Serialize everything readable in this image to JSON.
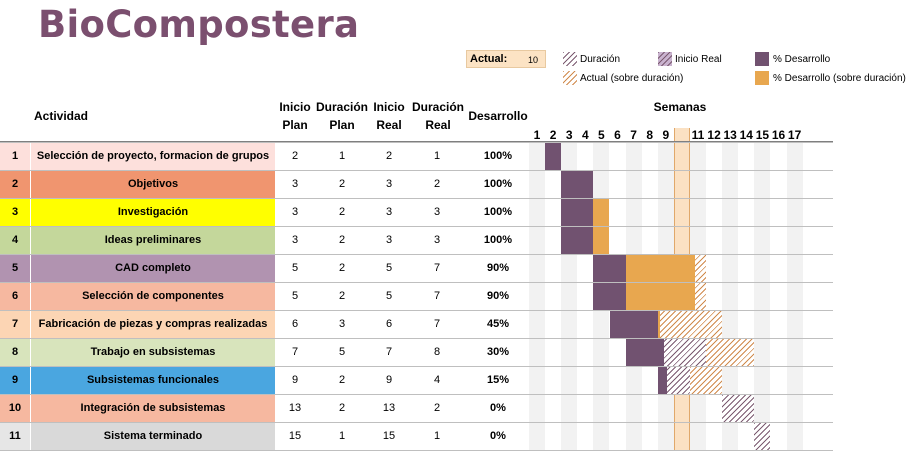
{
  "title": "BioCompostera",
  "actual": {
    "label": "Actual:",
    "value": "10",
    "week": 10
  },
  "legend": {
    "duracion": "Duración",
    "inicio_real": "Inicio Real",
    "desarrollo": "% Desarrollo",
    "actual_sobre": "Actual (sobre duración)",
    "desarrollo_sobre": "% Desarrollo (sobre duración)"
  },
  "headers": {
    "actividad": "Actividad",
    "inicio_plan": [
      "Inicio",
      "Plan"
    ],
    "duracion_plan": [
      "Duración",
      "Plan"
    ],
    "inicio_real": [
      "Inicio",
      "Real"
    ],
    "duracion_real": [
      "Duración",
      "Real"
    ],
    "desarrollo": "Desarrollo",
    "semanas": "Semanas"
  },
  "colors": {
    "title": "#7b4f6f",
    "progress": "#715270",
    "over": "#e8a74f",
    "current_week": "#fbe1c3"
  },
  "weeks": [
    "1",
    "2",
    "3",
    "4",
    "5",
    "6",
    "7",
    "8",
    "9",
    "10",
    "11",
    "12",
    "13",
    "14",
    "15",
    "16",
    "17"
  ],
  "activities": [
    {
      "idx": "1",
      "name": "Selección de proyecto, formacion de grupos",
      "color": "#fde0dc",
      "idxcolor": "#fde0dc",
      "ip": "2",
      "dp": "1",
      "ir": "2",
      "dr": "1",
      "pct": "100%",
      "p": 1.0
    },
    {
      "idx": "2",
      "name": "Objetivos",
      "color": "#f0956f",
      "idxcolor": "#f0956f",
      "ip": "3",
      "dp": "2",
      "ir": "3",
      "dr": "2",
      "pct": "100%",
      "p": 1.0
    },
    {
      "idx": "3",
      "name": "Investigación",
      "color": "#ffff00",
      "idxcolor": "#ffff00",
      "ip": "3",
      "dp": "2",
      "ir": "3",
      "dr": "3",
      "pct": "100%",
      "p": 1.0
    },
    {
      "idx": "4",
      "name": "Ideas preliminares",
      "color": "#c4d79b",
      "idxcolor": "#c4d79b",
      "ip": "3",
      "dp": "2",
      "ir": "3",
      "dr": "3",
      "pct": "100%",
      "p": 1.0
    },
    {
      "idx": "5",
      "name": "CAD completo",
      "color": "#b193b0",
      "idxcolor": "#b193b0",
      "ip": "5",
      "dp": "2",
      "ir": "5",
      "dr": "7",
      "pct": "90%",
      "p": 0.9
    },
    {
      "idx": "6",
      "name": "Selección de componentes",
      "color": "#f6b8a0",
      "idxcolor": "#f6b8a0",
      "ip": "5",
      "dp": "2",
      "ir": "5",
      "dr": "7",
      "pct": "90%",
      "p": 0.9
    },
    {
      "idx": "7",
      "name": "Fabricación de piezas y compras realizadas",
      "color": "#fcd5b4",
      "idxcolor": "#fcd5b4",
      "ip": "6",
      "dp": "3",
      "ir": "6",
      "dr": "7",
      "pct": "45%",
      "p": 0.45
    },
    {
      "idx": "8",
      "name": "Trabajo en subsistemas",
      "color": "#d8e4bc",
      "idxcolor": "#d8e4bc",
      "ip": "7",
      "dp": "5",
      "ir": "7",
      "dr": "8",
      "pct": "30%",
      "p": 0.3
    },
    {
      "idx": "9",
      "name": "Subsistemas funcionales",
      "color": "#4aa6e0",
      "idxcolor": "#4aa6e0",
      "ip": "9",
      "dp": "2",
      "ir": "9",
      "dr": "4",
      "pct": "15%",
      "p": 0.15
    },
    {
      "idx": "10",
      "name": "Integración de subsistemas",
      "color": "#f6b8a0",
      "idxcolor": "#f6b8a0",
      "ip": "13",
      "dp": "2",
      "ir": "13",
      "dr": "2",
      "pct": "0%",
      "p": 0
    },
    {
      "idx": "11",
      "name": "Sistema terminado",
      "color": "#d9d9d9",
      "idxcolor": "#e6e6e6",
      "ip": "15",
      "dp": "1",
      "ir": "15",
      "dr": "1",
      "pct": "0%",
      "p": 0
    }
  ]
}
